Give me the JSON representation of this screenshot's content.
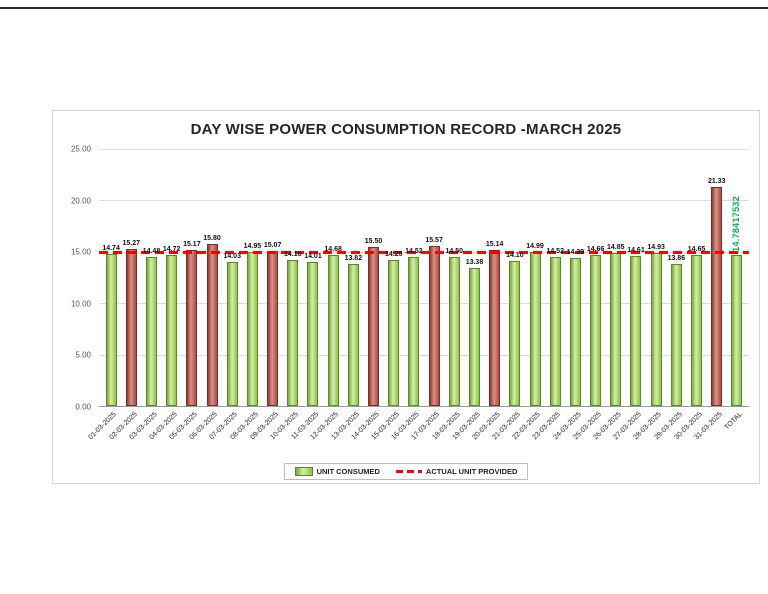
{
  "chart_data": {
    "type": "bar",
    "title": "DAY WISE POWER CONSUMPTION RECORD -MARCH 2025",
    "categories": [
      "01-03-2025",
      "02-03-2025",
      "03-03-2025",
      "04-03-2025",
      "05-03-2025",
      "06-03-2025",
      "07-03-2025",
      "08-03-2025",
      "09-03-2025",
      "10-03-2025",
      "11-03-2025",
      "12-03-2025",
      "13-03-2025",
      "14-03-2025",
      "15-03-2025",
      "16-03-2025",
      "17-03-2025",
      "18-03-2025",
      "19-03-2025",
      "20-03-2025",
      "21-03-2025",
      "22-03-2025",
      "23-03-2025",
      "24-03-2025",
      "25-03-2025",
      "26-03-2025",
      "27-03-2025",
      "28-03-2025",
      "29-03-2025",
      "30-03-2025",
      "31-03-2025",
      "TOTAL"
    ],
    "values": [
      14.74,
      15.27,
      14.48,
      14.72,
      15.17,
      15.8,
      14.03,
      14.95,
      15.07,
      14.16,
      14.01,
      14.68,
      13.82,
      15.5,
      14.25,
      14.52,
      15.57,
      14.5,
      13.38,
      15.14,
      14.1,
      14.99,
      14.52,
      14.39,
      14.66,
      14.85,
      14.61,
      14.93,
      13.86,
      14.65,
      21.33,
      14.72
    ],
    "labels": [
      "14.74",
      "15.27",
      "14.48",
      "14.72",
      "15.17",
      "15.80",
      "14.03",
      "14.95",
      "15.07",
      "14.16",
      "14.01",
      "14.68",
      "13.82",
      "15.50",
      "14.25",
      "14.52",
      "15.57",
      "14.50",
      "13.38",
      "15.14",
      "14.10",
      "14.99",
      "14.52",
      "14.39",
      "14.66",
      "14.85",
      "14.61",
      "14.93",
      "13.86",
      "14.65",
      "21.33",
      ""
    ],
    "bar_colors": [
      "green",
      "red",
      "green",
      "green",
      "red",
      "red",
      "green",
      "green",
      "red",
      "green",
      "green",
      "green",
      "green",
      "red",
      "green",
      "green",
      "red",
      "green",
      "green",
      "red",
      "green",
      "green",
      "green",
      "green",
      "green",
      "green",
      "green",
      "green",
      "green",
      "green",
      "red",
      "green"
    ],
    "ylim": [
      0,
      25
    ],
    "yticks": [
      "25.00",
      "20.00",
      "15.00",
      "10.00",
      "5.00",
      "0.00"
    ],
    "reference_line": {
      "value": 14.78417532,
      "label": "14.78417532"
    },
    "colors": {
      "consumed": "#8DC63F",
      "consumed_border": "#5a8a28",
      "exceeded": "#B04A42",
      "exceeded_border": "#7c2d26",
      "reference": "#FF0000",
      "reference_label": "#00B050"
    },
    "legend": [
      {
        "label": "UNIT CONSUMED",
        "swatch": "bar"
      },
      {
        "label": "ACTUAL UNIT PROVIDED",
        "swatch": "dash"
      }
    ],
    "grid": true,
    "legend_position": "bottom"
  }
}
